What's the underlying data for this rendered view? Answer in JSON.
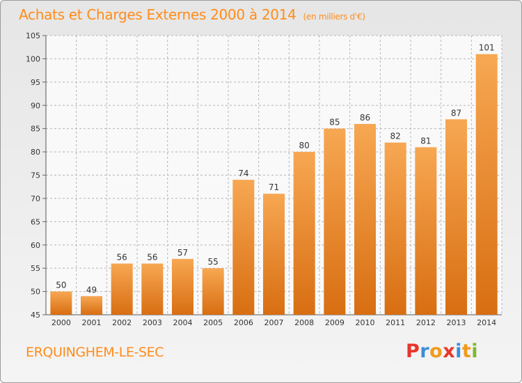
{
  "header": {
    "title": "Achats et Charges Externes 2000 à 2014",
    "unit": "(en milliers d'€)"
  },
  "footer": {
    "commune": "ERQUINGHEM-LE-SEC",
    "logo_text": "Proxiti",
    "logo_colors": [
      "#e8352b",
      "#3a8fd8",
      "#f29a1d",
      "#e8352b",
      "#3a8fd8",
      "#f29a1d",
      "#7ab82e"
    ]
  },
  "colors": {
    "bar_light": "#f7a752",
    "bar_dark": "#d86e12",
    "accent": "#ff8c1a",
    "grid": "#b5b5b5",
    "text": "#333333"
  },
  "chart_data": {
    "type": "bar",
    "categories": [
      "2000",
      "2001",
      "2002",
      "2003",
      "2004",
      "2005",
      "2006",
      "2007",
      "2008",
      "2009",
      "2010",
      "2011",
      "2012",
      "2013",
      "2014"
    ],
    "values": [
      50,
      49,
      56,
      56,
      57,
      55,
      74,
      71,
      80,
      85,
      86,
      82,
      81,
      87,
      101
    ],
    "title": "Achats et Charges Externes 2000 à 2014",
    "ylabel": "",
    "xlabel": "",
    "ylim": [
      45,
      105
    ],
    "yticks": [
      45,
      50,
      55,
      60,
      65,
      70,
      75,
      80,
      85,
      90,
      95,
      100,
      105
    ],
    "grid": true,
    "data_labels": true
  }
}
